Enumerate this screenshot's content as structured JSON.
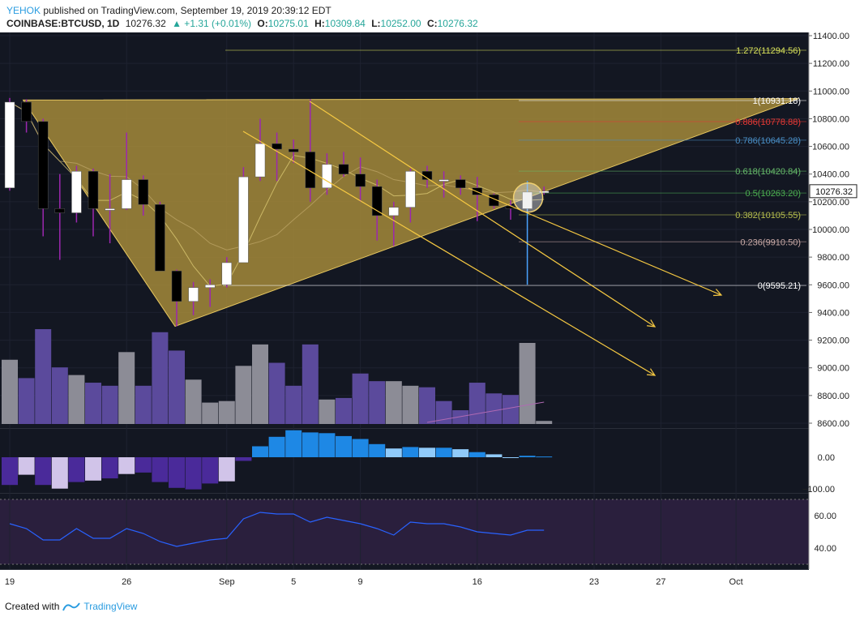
{
  "header": {
    "publisher": "YEHOK",
    "published_text": "published on TradingView.com, September 19, 2019 20:39:12 EDT",
    "symbol": "COINBASE:BTCUSD, 1D",
    "last": "10276.32",
    "change": "▲ +1.31 (+0.01%)",
    "o_label": "O:",
    "o": "10275.01",
    "h_label": "H:",
    "h": "10309.84",
    "l_label": "L:",
    "l": "10252.00",
    "c_label": "C:",
    "c": "10276.32"
  },
  "footer": {
    "created_with": "Created with",
    "brand": "TradingView"
  },
  "colors": {
    "background": "#131722",
    "up_candle": "#ffffff",
    "down_candle": "#000000",
    "wick": "#9c27b0",
    "triangle_fill": "#a58a3a",
    "trend_line": "#f5c842",
    "volume_purple": "#5b4a9c",
    "volume_gray": "#8c8c96",
    "macd_up_dark": "#1e88e5",
    "macd_up_light": "#90caf9",
    "macd_down_dark": "#4a2a9a",
    "macd_down_light": "#d1c4e9",
    "rsi_bg": "#2a1f3d",
    "rsi_line": "#2962ff"
  },
  "chart_data": {
    "type": "candlestick",
    "interval": "1D",
    "ylim": [
      8600,
      11400
    ],
    "y_ticks": [
      "11400.00",
      "11200.00",
      "11000.00",
      "10800.00",
      "10600.00",
      "10400.00",
      "10200.00",
      "10000.00",
      "9800.00",
      "9600.00",
      "9400.00",
      "9200.00",
      "9000.00",
      "8800.00",
      "8600.00"
    ],
    "x_ticks": [
      "19",
      "26",
      "Sep",
      "5",
      "9",
      "16",
      "23",
      "27",
      "Oct"
    ],
    "last_price_label": "10276.32",
    "candles": [
      {
        "o": 10300,
        "h": 10950,
        "l": 10280,
        "c": 10920
      },
      {
        "o": 10920,
        "h": 10940,
        "l": 10700,
        "c": 10780
      },
      {
        "o": 10780,
        "h": 10800,
        "l": 9950,
        "c": 10150
      },
      {
        "o": 10150,
        "h": 10400,
        "l": 9780,
        "c": 10120
      },
      {
        "o": 10120,
        "h": 10460,
        "l": 10050,
        "c": 10420
      },
      {
        "o": 10420,
        "h": 10440,
        "l": 9950,
        "c": 10150
      },
      {
        "o": 10150,
        "h": 10400,
        "l": 9900,
        "c": 10150
      },
      {
        "o": 10150,
        "h": 10700,
        "l": 10140,
        "c": 10360
      },
      {
        "o": 10360,
        "h": 10390,
        "l": 10100,
        "c": 10180
      },
      {
        "o": 10180,
        "h": 10200,
        "l": 9700,
        "c": 9700
      },
      {
        "o": 9700,
        "h": 9710,
        "l": 9300,
        "c": 9480
      },
      {
        "o": 9480,
        "h": 9620,
        "l": 9380,
        "c": 9580
      },
      {
        "o": 9580,
        "h": 9640,
        "l": 9440,
        "c": 9600
      },
      {
        "o": 9600,
        "h": 9800,
        "l": 9580,
        "c": 9760
      },
      {
        "o": 9760,
        "h": 10450,
        "l": 9760,
        "c": 10380
      },
      {
        "o": 10380,
        "h": 10800,
        "l": 10350,
        "c": 10620
      },
      {
        "o": 10620,
        "h": 10700,
        "l": 10350,
        "c": 10580
      },
      {
        "o": 10580,
        "h": 10650,
        "l": 10480,
        "c": 10560
      },
      {
        "o": 10560,
        "h": 10940,
        "l": 10200,
        "c": 10300
      },
      {
        "o": 10300,
        "h": 10550,
        "l": 10250,
        "c": 10470
      },
      {
        "o": 10470,
        "h": 10560,
        "l": 10380,
        "c": 10400
      },
      {
        "o": 10400,
        "h": 10520,
        "l": 10200,
        "c": 10310
      },
      {
        "o": 10310,
        "h": 10360,
        "l": 9920,
        "c": 10100
      },
      {
        "o": 10100,
        "h": 10200,
        "l": 9880,
        "c": 10160
      },
      {
        "o": 10160,
        "h": 10440,
        "l": 10050,
        "c": 10420
      },
      {
        "o": 10420,
        "h": 10460,
        "l": 10300,
        "c": 10360
      },
      {
        "o": 10360,
        "h": 10420,
        "l": 10230,
        "c": 10360
      },
      {
        "o": 10360,
        "h": 10390,
        "l": 10250,
        "c": 10300
      },
      {
        "o": 10300,
        "h": 10380,
        "l": 10060,
        "c": 10250
      },
      {
        "o": 10250,
        "h": 10260,
        "l": 10150,
        "c": 10170
      },
      {
        "o": 10170,
        "h": 10210,
        "l": 10070,
        "c": 10150
      },
      {
        "o": 10150,
        "h": 10350,
        "l": 9600,
        "c": 10270
      },
      {
        "o": 10275.01,
        "h": 10309.84,
        "l": 10252,
        "c": 10276.32
      }
    ],
    "volume": [
      {
        "v": 0.42,
        "up": true
      },
      {
        "v": 0.3,
        "up": false
      },
      {
        "v": 0.62,
        "up": false
      },
      {
        "v": 0.37,
        "up": false
      },
      {
        "v": 0.32,
        "up": true
      },
      {
        "v": 0.27,
        "up": false
      },
      {
        "v": 0.25,
        "up": false
      },
      {
        "v": 0.47,
        "up": true
      },
      {
        "v": 0.25,
        "up": false
      },
      {
        "v": 0.6,
        "up": false
      },
      {
        "v": 0.48,
        "up": false
      },
      {
        "v": 0.29,
        "up": true
      },
      {
        "v": 0.14,
        "up": true
      },
      {
        "v": 0.15,
        "up": true
      },
      {
        "v": 0.38,
        "up": true
      },
      {
        "v": 0.52,
        "up": true
      },
      {
        "v": 0.4,
        "up": false
      },
      {
        "v": 0.25,
        "up": false
      },
      {
        "v": 0.52,
        "up": false
      },
      {
        "v": 0.16,
        "up": true
      },
      {
        "v": 0.17,
        "up": false
      },
      {
        "v": 0.33,
        "up": false
      },
      {
        "v": 0.28,
        "up": false
      },
      {
        "v": 0.28,
        "up": true
      },
      {
        "v": 0.25,
        "up": true
      },
      {
        "v": 0.24,
        "up": false
      },
      {
        "v": 0.15,
        "up": false
      },
      {
        "v": 0.09,
        "up": false
      },
      {
        "v": 0.27,
        "up": false
      },
      {
        "v": 0.2,
        "up": false
      },
      {
        "v": 0.19,
        "up": false
      },
      {
        "v": 0.53,
        "up": true
      },
      {
        "v": 0.02,
        "up": true
      }
    ],
    "macd_hist": [
      -38,
      -24,
      -38,
      -43,
      -34,
      -32,
      -29,
      -23,
      -21,
      -34,
      -42,
      -44,
      -36,
      -33,
      -5,
      15,
      28,
      37,
      34,
      33,
      29,
      25,
      18,
      12,
      14,
      13,
      13,
      11,
      7,
      4,
      0,
      2,
      1
    ],
    "rsi": [
      55,
      52,
      45,
      45,
      52,
      46,
      46,
      52,
      49,
      44,
      41,
      43,
      45,
      46,
      58,
      62,
      61,
      61,
      56,
      59,
      57,
      55,
      52,
      48,
      56,
      55,
      55,
      53,
      50,
      49,
      48,
      51,
      51
    ],
    "fibonacci": [
      {
        "level": "1.272",
        "price": "11294.56",
        "label": "1.272(11294.56)",
        "color": "#d8e25a"
      },
      {
        "level": "1",
        "price": "10931.18",
        "label": "1(10931.18)",
        "color": "#ffffff"
      },
      {
        "level": "0.886",
        "price": "10778.88",
        "label": "0.886(10778.88)",
        "color": "#e53935"
      },
      {
        "level": "0.786",
        "price": "10645.28",
        "label": "0.786(10645.28)",
        "color": "#4a90c8"
      },
      {
        "level": "0.618",
        "price": "10420.84",
        "label": "0.618(10420.84)",
        "color": "#66bb6a"
      },
      {
        "level": "0.5",
        "price": "10263.20",
        "label": "0.5(10263.20)",
        "color": "#4caf50"
      },
      {
        "level": "0.382",
        "price": "10105.55",
        "label": "0.382(10105.55)",
        "color": "#b5bd4d"
      },
      {
        "level": "0.236",
        "price": "9910.50",
        "label": "0.236(9910.50)",
        "color": "#c9a9a6"
      },
      {
        "level": "0",
        "price": "9595.21",
        "label": "0(9595.21)",
        "color": "#ffffff"
      }
    ],
    "macd_ticks": [
      "0.00",
      "−100.00"
    ],
    "rsi_ticks": [
      "60.00",
      "40.00"
    ]
  }
}
